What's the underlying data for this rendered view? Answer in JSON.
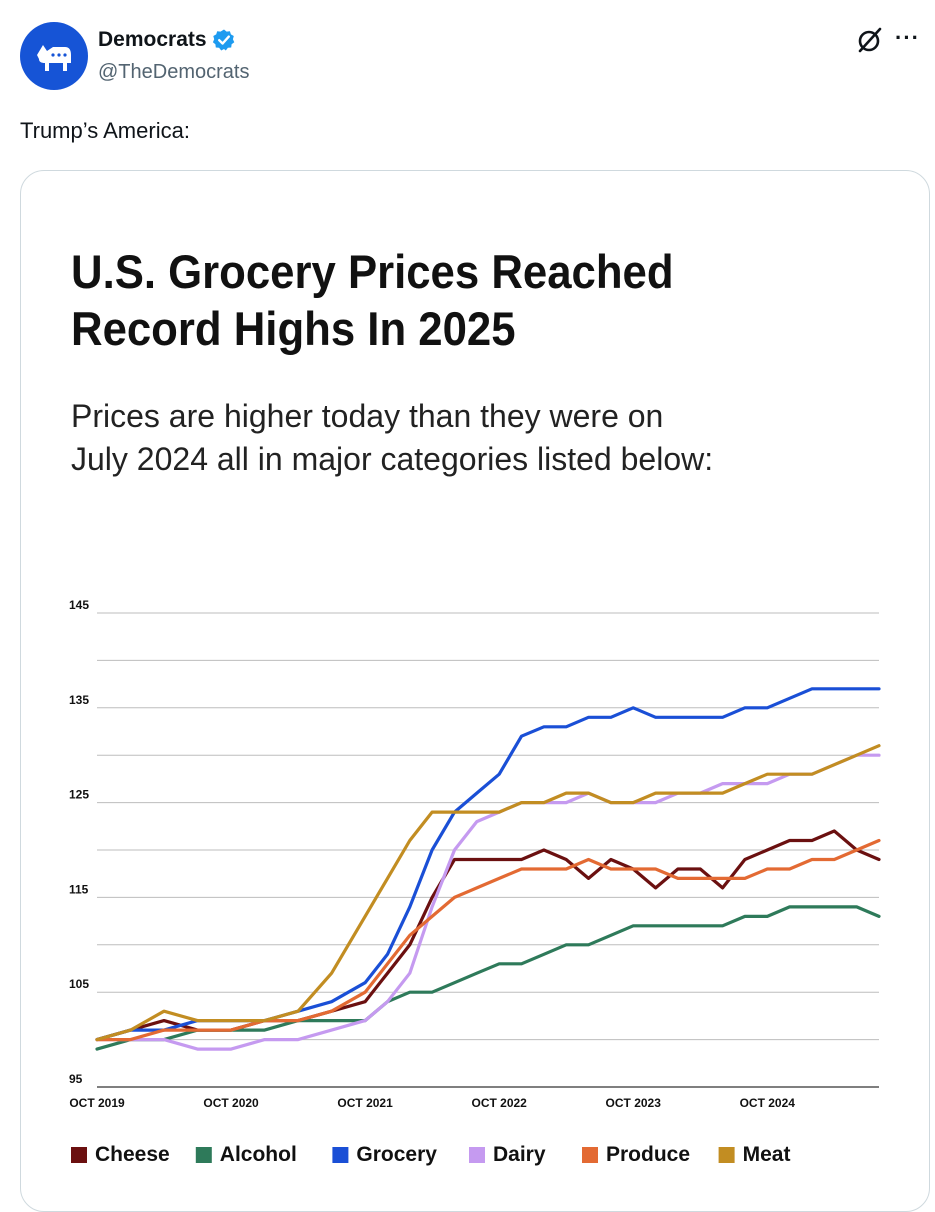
{
  "tweet": {
    "author_name": "Democrats",
    "handle": "@TheDemocrats",
    "text": "Trump’s America:",
    "avatar_icon": "donkey-icon",
    "verified_icon": "verified-badge-icon",
    "grok_icon": "grok-icon",
    "more_icon": "more-options-icon",
    "more_glyph": "···",
    "accent_color": "#1d9bf0",
    "avatar_color": "#1654d6"
  },
  "chart_data": {
    "type": "line",
    "title_lines": [
      "U.S. Grocery Prices Reached",
      "Record Highs In 2025"
    ],
    "subtitle_lines": [
      "Prices are higher today than they were on",
      "July 2024 all in major categories listed below:"
    ],
    "ylim": [
      95,
      145
    ],
    "y_ticks": [
      "145",
      "135",
      "125",
      "115",
      "105",
      "95"
    ],
    "y_tick_values": [
      145,
      135,
      125,
      115,
      105,
      95
    ],
    "gridlines_every": 5,
    "x_range": [
      0,
      70
    ],
    "x_ticks": [
      {
        "label": "OCT 2019",
        "x": 0
      },
      {
        "label": "OCT 2020",
        "x": 12
      },
      {
        "label": "OCT 2021",
        "x": 24
      },
      {
        "label": "OCT 2022",
        "x": 36
      },
      {
        "label": "OCT 2023",
        "x": 48
      },
      {
        "label": "OCT 2024",
        "x": 60
      }
    ],
    "legend_position": "bottom",
    "series": [
      {
        "name": "Cheese",
        "color": "#6b1010",
        "points": [
          [
            0,
            100
          ],
          [
            3,
            101
          ],
          [
            6,
            102
          ],
          [
            9,
            101
          ],
          [
            12,
            101
          ],
          [
            15,
            102
          ],
          [
            18,
            102
          ],
          [
            21,
            103
          ],
          [
            24,
            104
          ],
          [
            26,
            107
          ],
          [
            28,
            110
          ],
          [
            30,
            115
          ],
          [
            32,
            119
          ],
          [
            34,
            119
          ],
          [
            36,
            119
          ],
          [
            38,
            119
          ],
          [
            40,
            120
          ],
          [
            42,
            119
          ],
          [
            44,
            117
          ],
          [
            46,
            119
          ],
          [
            48,
            118
          ],
          [
            50,
            116
          ],
          [
            52,
            118
          ],
          [
            54,
            118
          ],
          [
            56,
            116
          ],
          [
            58,
            119
          ],
          [
            60,
            120
          ],
          [
            62,
            121
          ],
          [
            64,
            121
          ],
          [
            66,
            122
          ],
          [
            68,
            120
          ],
          [
            70,
            119
          ]
        ]
      },
      {
        "name": "Alcohol",
        "color": "#2e7a5a",
        "points": [
          [
            0,
            99
          ],
          [
            3,
            100
          ],
          [
            6,
            100
          ],
          [
            9,
            101
          ],
          [
            12,
            101
          ],
          [
            15,
            101
          ],
          [
            18,
            102
          ],
          [
            21,
            102
          ],
          [
            24,
            102
          ],
          [
            26,
            104
          ],
          [
            28,
            105
          ],
          [
            30,
            105
          ],
          [
            32,
            106
          ],
          [
            34,
            107
          ],
          [
            36,
            108
          ],
          [
            38,
            108
          ],
          [
            40,
            109
          ],
          [
            42,
            110
          ],
          [
            44,
            110
          ],
          [
            46,
            111
          ],
          [
            48,
            112
          ],
          [
            50,
            112
          ],
          [
            52,
            112
          ],
          [
            54,
            112
          ],
          [
            56,
            112
          ],
          [
            58,
            113
          ],
          [
            60,
            113
          ],
          [
            62,
            114
          ],
          [
            64,
            114
          ],
          [
            66,
            114
          ],
          [
            68,
            114
          ],
          [
            70,
            113
          ]
        ]
      },
      {
        "name": "Grocery",
        "color": "#1a4fd6",
        "points": [
          [
            0,
            100
          ],
          [
            3,
            101
          ],
          [
            6,
            101
          ],
          [
            9,
            102
          ],
          [
            12,
            102
          ],
          [
            15,
            102
          ],
          [
            18,
            103
          ],
          [
            21,
            104
          ],
          [
            24,
            106
          ],
          [
            26,
            109
          ],
          [
            28,
            114
          ],
          [
            30,
            120
          ],
          [
            32,
            124
          ],
          [
            34,
            126
          ],
          [
            36,
            128
          ],
          [
            38,
            132
          ],
          [
            40,
            133
          ],
          [
            42,
            133
          ],
          [
            44,
            134
          ],
          [
            46,
            134
          ],
          [
            48,
            135
          ],
          [
            50,
            134
          ],
          [
            52,
            134
          ],
          [
            54,
            134
          ],
          [
            56,
            134
          ],
          [
            58,
            135
          ],
          [
            60,
            135
          ],
          [
            62,
            136
          ],
          [
            64,
            137
          ],
          [
            66,
            137
          ],
          [
            68,
            137
          ],
          [
            70,
            137
          ]
        ]
      },
      {
        "name": "Dairy",
        "color": "#c59af0",
        "points": [
          [
            0,
            100
          ],
          [
            3,
            100
          ],
          [
            6,
            100
          ],
          [
            9,
            99
          ],
          [
            12,
            99
          ],
          [
            15,
            100
          ],
          [
            18,
            100
          ],
          [
            21,
            101
          ],
          [
            24,
            102
          ],
          [
            26,
            104
          ],
          [
            28,
            107
          ],
          [
            30,
            114
          ],
          [
            32,
            120
          ],
          [
            34,
            123
          ],
          [
            36,
            124
          ],
          [
            38,
            125
          ],
          [
            40,
            125
          ],
          [
            42,
            125
          ],
          [
            44,
            126
          ],
          [
            46,
            125
          ],
          [
            48,
            125
          ],
          [
            50,
            125
          ],
          [
            52,
            126
          ],
          [
            54,
            126
          ],
          [
            56,
            127
          ],
          [
            58,
            127
          ],
          [
            60,
            127
          ],
          [
            62,
            128
          ],
          [
            64,
            128
          ],
          [
            66,
            129
          ],
          [
            68,
            130
          ],
          [
            70,
            130
          ]
        ]
      },
      {
        "name": "Produce",
        "color": "#e36a33",
        "points": [
          [
            0,
            100
          ],
          [
            3,
            100
          ],
          [
            6,
            101
          ],
          [
            9,
            101
          ],
          [
            12,
            101
          ],
          [
            15,
            102
          ],
          [
            18,
            102
          ],
          [
            21,
            103
          ],
          [
            24,
            105
          ],
          [
            26,
            108
          ],
          [
            28,
            111
          ],
          [
            30,
            113
          ],
          [
            32,
            115
          ],
          [
            34,
            116
          ],
          [
            36,
            117
          ],
          [
            38,
            118
          ],
          [
            40,
            118
          ],
          [
            42,
            118
          ],
          [
            44,
            119
          ],
          [
            46,
            118
          ],
          [
            48,
            118
          ],
          [
            50,
            118
          ],
          [
            52,
            117
          ],
          [
            54,
            117
          ],
          [
            56,
            117
          ],
          [
            58,
            117
          ],
          [
            60,
            118
          ],
          [
            62,
            118
          ],
          [
            64,
            119
          ],
          [
            66,
            119
          ],
          [
            68,
            120
          ],
          [
            70,
            121
          ]
        ]
      },
      {
        "name": "Meat",
        "color": "#c28d22",
        "points": [
          [
            0,
            100
          ],
          [
            3,
            101
          ],
          [
            6,
            103
          ],
          [
            9,
            102
          ],
          [
            12,
            102
          ],
          [
            15,
            102
          ],
          [
            18,
            103
          ],
          [
            21,
            107
          ],
          [
            24,
            113
          ],
          [
            26,
            117
          ],
          [
            28,
            121
          ],
          [
            30,
            124
          ],
          [
            32,
            124
          ],
          [
            34,
            124
          ],
          [
            36,
            124
          ],
          [
            38,
            125
          ],
          [
            40,
            125
          ],
          [
            42,
            126
          ],
          [
            44,
            126
          ],
          [
            46,
            125
          ],
          [
            48,
            125
          ],
          [
            50,
            126
          ],
          [
            52,
            126
          ],
          [
            54,
            126
          ],
          [
            56,
            126
          ],
          [
            58,
            127
          ],
          [
            60,
            128
          ],
          [
            62,
            128
          ],
          [
            64,
            128
          ],
          [
            66,
            129
          ],
          [
            68,
            130
          ],
          [
            70,
            131
          ]
        ]
      }
    ]
  }
}
